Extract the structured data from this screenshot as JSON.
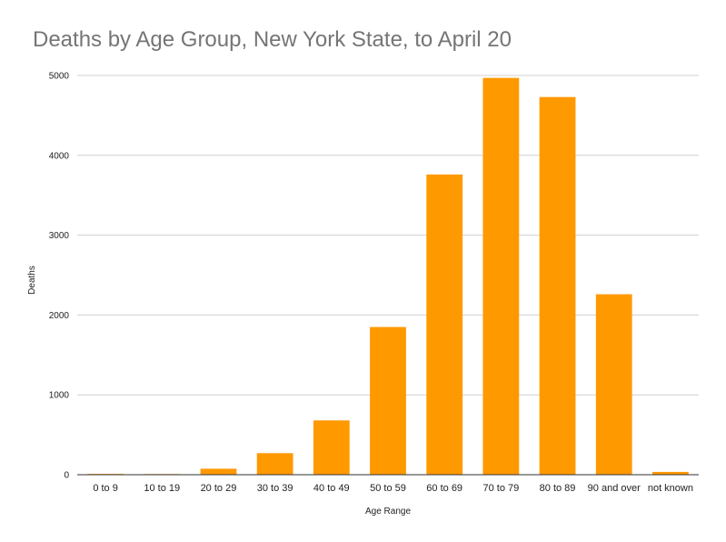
{
  "chart_data": {
    "type": "bar",
    "title": "Deaths by Age Group, New York State, to April 20",
    "xlabel": "Age Range",
    "ylabel": "Deaths",
    "categories": [
      "0 to 9",
      "10 to 19",
      "20 to 29",
      "30 to 39",
      "40 to 49",
      "50 to 59",
      "60 to 69",
      "70 to 79",
      "80 to 89",
      "90 and over",
      "not known"
    ],
    "values": [
      10,
      8,
      75,
      270,
      680,
      1850,
      3760,
      4970,
      4730,
      2260,
      35
    ],
    "ylim": [
      0,
      5000
    ],
    "yticks": [
      0,
      1000,
      2000,
      3000,
      4000,
      5000
    ],
    "bar_color": "#ff9900",
    "grid": true,
    "legend": "none"
  }
}
